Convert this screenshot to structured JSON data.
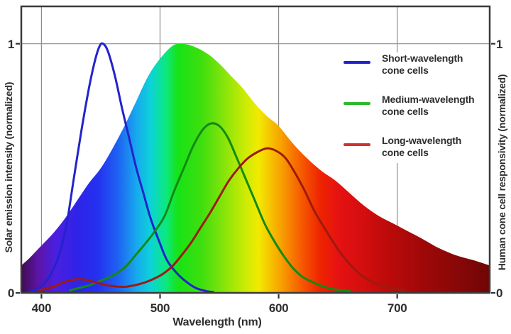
{
  "figure": {
    "background": "#ffffff",
    "border_color": "#3a3a3a",
    "grid_color": "#8d8d8d",
    "tick_color": "#333333",
    "text_color": "#2d2d2d"
  },
  "legend": {
    "items": [
      {
        "lines": [
          "Short-wavelength",
          "cone cells"
        ],
        "color": "#2323cd"
      },
      {
        "lines": [
          "Medium-wavelength",
          "cone cells"
        ],
        "color": "#2db92d"
      },
      {
        "lines": [
          "Long-wavelength",
          "cone cells"
        ],
        "color": "#cd3333"
      }
    ]
  },
  "chart_data": {
    "type": "area+line",
    "title": "",
    "xlabel": "Wavelength (nm)",
    "ylabel_left": "Solar emission intensity (normalized)",
    "ylabel_right": "Human cone cell responsivity (normalized)",
    "xlim": [
      383,
      778
    ],
    "ylim": [
      0,
      1.15
    ],
    "x_ticks": [
      400,
      500,
      600,
      700
    ],
    "y_ticks": [
      1,
      0
    ],
    "grid": {
      "vertical_at_x_ticks": true,
      "horizontal_at_y": 1,
      "legend_covers_grid": true
    },
    "solar_area": {
      "name": "Solar emission spectrum",
      "fill": "visible-spectrum-gradient",
      "points": [
        [
          383,
          0.11
        ],
        [
          390,
          0.14
        ],
        [
          400,
          0.19
        ],
        [
          410,
          0.24
        ],
        [
          420,
          0.3
        ],
        [
          430,
          0.37
        ],
        [
          440,
          0.44
        ],
        [
          450,
          0.5
        ],
        [
          460,
          0.58
        ],
        [
          470,
          0.67
        ],
        [
          480,
          0.77
        ],
        [
          490,
          0.87
        ],
        [
          500,
          0.94
        ],
        [
          510,
          0.99
        ],
        [
          518,
          1.0
        ],
        [
          528,
          0.99
        ],
        [
          540,
          0.96
        ],
        [
          550,
          0.92
        ],
        [
          560,
          0.87
        ],
        [
          570,
          0.82
        ],
        [
          580,
          0.76
        ],
        [
          590,
          0.71
        ],
        [
          600,
          0.67
        ],
        [
          612,
          0.6
        ],
        [
          624,
          0.54
        ],
        [
          636,
          0.49
        ],
        [
          648,
          0.45
        ],
        [
          660,
          0.4
        ],
        [
          672,
          0.35
        ],
        [
          684,
          0.31
        ],
        [
          696,
          0.28
        ],
        [
          708,
          0.25
        ],
        [
          720,
          0.22
        ],
        [
          735,
          0.18
        ],
        [
          750,
          0.15
        ],
        [
          765,
          0.13
        ],
        [
          778,
          0.11
        ]
      ]
    },
    "cone_series": [
      {
        "name": "Short-wavelength cone cells",
        "color": "#2323cd",
        "points": [
          [
            390,
            0.005
          ],
          [
            398,
            0.02
          ],
          [
            406,
            0.06
          ],
          [
            414,
            0.14
          ],
          [
            421,
            0.27
          ],
          [
            427,
            0.45
          ],
          [
            434,
            0.66
          ],
          [
            440,
            0.82
          ],
          [
            445,
            0.93
          ],
          [
            449,
            0.99
          ],
          [
            452,
            1.0
          ],
          [
            456,
            0.97
          ],
          [
            462,
            0.87
          ],
          [
            468,
            0.74
          ],
          [
            474,
            0.62
          ],
          [
            480,
            0.5
          ],
          [
            486,
            0.4
          ],
          [
            492,
            0.3
          ],
          [
            499,
            0.21
          ],
          [
            506,
            0.13
          ],
          [
            514,
            0.08
          ],
          [
            522,
            0.045
          ],
          [
            530,
            0.02
          ],
          [
            538,
            0.008
          ],
          [
            545,
            0.003
          ]
        ]
      },
      {
        "name": "Medium-wavelength cone cells",
        "color": "#128a12",
        "points": [
          [
            424,
            0.01
          ],
          [
            432,
            0.02
          ],
          [
            440,
            0.03
          ],
          [
            448,
            0.045
          ],
          [
            456,
            0.06
          ],
          [
            464,
            0.08
          ],
          [
            472,
            0.11
          ],
          [
            480,
            0.155
          ],
          [
            488,
            0.2
          ],
          [
            496,
            0.25
          ],
          [
            504,
            0.31
          ],
          [
            512,
            0.41
          ],
          [
            520,
            0.5
          ],
          [
            528,
            0.59
          ],
          [
            536,
            0.655
          ],
          [
            543,
            0.68
          ],
          [
            550,
            0.67
          ],
          [
            557,
            0.625
          ],
          [
            564,
            0.55
          ],
          [
            572,
            0.46
          ],
          [
            580,
            0.37
          ],
          [
            588,
            0.28
          ],
          [
            596,
            0.21
          ],
          [
            604,
            0.15
          ],
          [
            612,
            0.1
          ],
          [
            620,
            0.065
          ],
          [
            630,
            0.04
          ],
          [
            640,
            0.022
          ],
          [
            650,
            0.012
          ],
          [
            660,
            0.007
          ]
        ]
      },
      {
        "name": "Long-wavelength cone cells",
        "color": "#9e1a10",
        "points": [
          [
            398,
            0.01
          ],
          [
            410,
            0.025
          ],
          [
            420,
            0.045
          ],
          [
            430,
            0.055
          ],
          [
            438,
            0.052
          ],
          [
            446,
            0.042
          ],
          [
            454,
            0.032
          ],
          [
            462,
            0.026
          ],
          [
            470,
            0.024
          ],
          [
            478,
            0.03
          ],
          [
            486,
            0.04
          ],
          [
            494,
            0.055
          ],
          [
            502,
            0.075
          ],
          [
            510,
            0.105
          ],
          [
            518,
            0.15
          ],
          [
            526,
            0.2
          ],
          [
            534,
            0.26
          ],
          [
            542,
            0.32
          ],
          [
            550,
            0.385
          ],
          [
            558,
            0.45
          ],
          [
            566,
            0.5
          ],
          [
            574,
            0.54
          ],
          [
            582,
            0.565
          ],
          [
            590,
            0.58
          ],
          [
            598,
            0.57
          ],
          [
            606,
            0.54
          ],
          [
            614,
            0.48
          ],
          [
            622,
            0.41
          ],
          [
            630,
            0.33
          ],
          [
            640,
            0.25
          ],
          [
            650,
            0.175
          ],
          [
            660,
            0.115
          ],
          [
            670,
            0.07
          ],
          [
            680,
            0.042
          ],
          [
            690,
            0.025
          ],
          [
            700,
            0.015
          ],
          [
            706,
            0.01
          ]
        ]
      }
    ],
    "gradient_stops": [
      [
        383,
        "#3f0d50"
      ],
      [
        397,
        "#5c14a6"
      ],
      [
        412,
        "#4b1fe0"
      ],
      [
        430,
        "#2f23e8"
      ],
      [
        448,
        "#2432f0"
      ],
      [
        465,
        "#1e64f2"
      ],
      [
        480,
        "#18a8ee"
      ],
      [
        492,
        "#0cd3d8"
      ],
      [
        505,
        "#0ce87e"
      ],
      [
        515,
        "#16e316"
      ],
      [
        535,
        "#3ede0e"
      ],
      [
        555,
        "#8ae50a"
      ],
      [
        572,
        "#cdeb04"
      ],
      [
        583,
        "#f2ea00"
      ],
      [
        593,
        "#f6c400"
      ],
      [
        603,
        "#f79d00"
      ],
      [
        613,
        "#f77300"
      ],
      [
        623,
        "#f44d00"
      ],
      [
        635,
        "#ee2400"
      ],
      [
        650,
        "#e61212"
      ],
      [
        670,
        "#d50e0e"
      ],
      [
        695,
        "#b90a0a"
      ],
      [
        725,
        "#9c0808"
      ],
      [
        755,
        "#850707"
      ],
      [
        778,
        "#6f0606"
      ]
    ]
  }
}
